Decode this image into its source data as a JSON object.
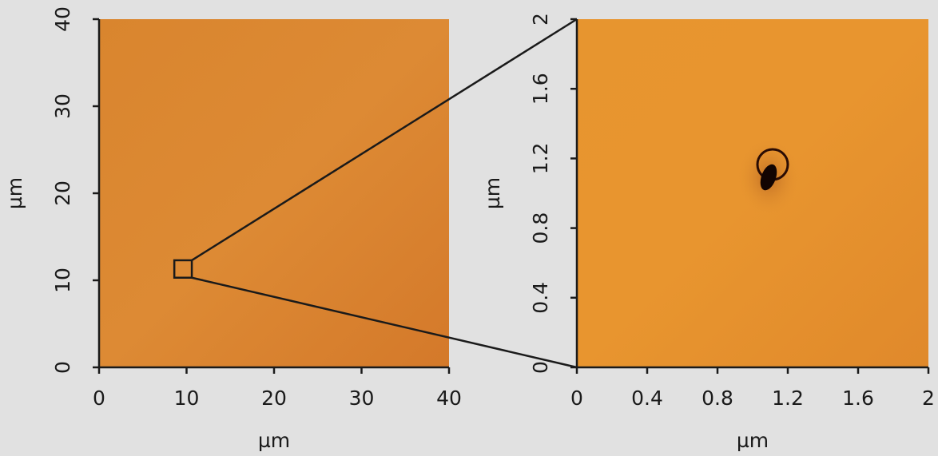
{
  "chart_data": [
    {
      "type": "image",
      "xlabel": "µm",
      "ylabel": "µm",
      "xlim": [
        0,
        40
      ],
      "ylim": [
        0,
        40
      ],
      "xticks": [
        0,
        10,
        20,
        30,
        40
      ],
      "yticks": [
        0,
        10,
        20,
        30,
        40
      ],
      "inset_region": {
        "x": [
          8.6,
          10.6
        ],
        "y": [
          10.3,
          12.3
        ]
      }
    },
    {
      "type": "image",
      "xlabel": "µm",
      "ylabel": "µm",
      "xlim": [
        0,
        2
      ],
      "ylim": [
        0,
        2
      ],
      "xticks": [
        0,
        0.4,
        0.8,
        1.2,
        1.6,
        2
      ],
      "yticks": [
        0,
        0.4,
        0.8,
        1.2,
        1.6,
        2
      ]
    }
  ]
}
